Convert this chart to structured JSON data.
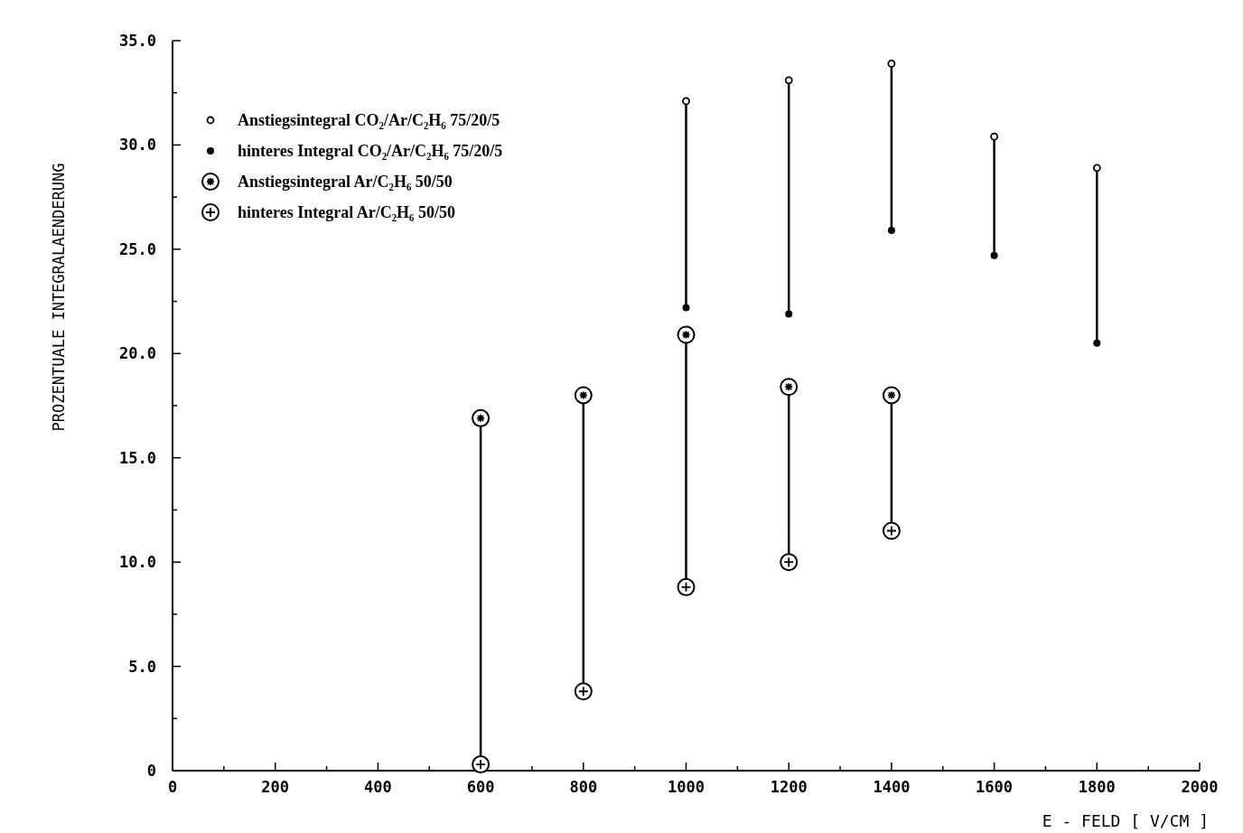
{
  "chart_data": {
    "type": "scatter",
    "xlabel": "E - FELD [ V/CM ]",
    "ylabel": "PROZENTUALE INTEGRALAENDERUNG",
    "xlim": [
      0,
      2000
    ],
    "ylim": [
      0,
      35
    ],
    "xticks": [
      0,
      {
        "value": 100,
        "label": null
      },
      200,
      {
        "value": 300,
        "label": null
      },
      400,
      {
        "value": 500,
        "label": null
      },
      600,
      {
        "value": 700,
        "label": null
      },
      800,
      {
        "value": 900,
        "label": null
      },
      1000,
      {
        "value": 1100,
        "label": null
      },
      1200,
      {
        "value": 1300,
        "label": null
      },
      1400,
      {
        "value": 1500,
        "label": null
      },
      1600,
      {
        "value": 1700,
        "label": null
      },
      1800,
      {
        "value": 1900,
        "label": null
      },
      2000
    ],
    "yticks": [
      0,
      {
        "value": 2.5,
        "label": null
      },
      {
        "value": 5,
        "label": "5.0"
      },
      {
        "value": 7.5,
        "label": null
      },
      {
        "value": 10,
        "label": "10.0"
      },
      {
        "value": 12.5,
        "label": null
      },
      {
        "value": 15,
        "label": "15.0"
      },
      {
        "value": 17.5,
        "label": null
      },
      {
        "value": 20,
        "label": "20.0"
      },
      {
        "value": 22.5,
        "label": null
      },
      {
        "value": 25,
        "label": "25.0"
      },
      {
        "value": 27.5,
        "label": null
      },
      {
        "value": 30,
        "label": "30.0"
      },
      {
        "value": 32.5,
        "label": null
      },
      {
        "value": 35,
        "label": "35.0"
      }
    ],
    "legend": "top left",
    "grid": false,
    "series": [
      {
        "name": "Anstiegsintegral CO₂/Ar/C₂H₆ 75/20/5",
        "color": "#000000",
        "marker": "open-circle",
        "x": [
          1000,
          1200,
          1400,
          1600,
          1800
        ],
        "values": [
          32.1,
          33.1,
          33.9,
          30.4,
          28.9
        ]
      },
      {
        "name": "hinteres Integral CO₂/Ar/C₂H₆ 75/20/5",
        "color": "#000000",
        "marker": "circle",
        "x": [
          1000,
          1200,
          1400,
          1600,
          1800
        ],
        "values": [
          22.2,
          21.9,
          25.9,
          24.7,
          20.5
        ]
      },
      {
        "name": "Anstiegsintegral Ar/C₂H₆ 50/50",
        "color": "#000000",
        "marker": "circle-star",
        "x": [
          600,
          800,
          1000,
          1200,
          1400
        ],
        "values": [
          16.9,
          18.0,
          20.9,
          18.4,
          18.0
        ]
      },
      {
        "name": "hinteres Integral Ar/C₂H₆ 50/50",
        "color": "#000000",
        "marker": "circle-plus",
        "x": [
          600,
          800,
          1000,
          1200,
          1400
        ],
        "values": [
          0.3,
          3.8,
          8.8,
          10.0,
          11.5
        ]
      },
      {
        "type": "line",
        "color": "#000000",
        "x": [
          1000,
          1000,
          null,
          1200,
          1200,
          null,
          1400,
          1400,
          null,
          1600,
          1600,
          null,
          1800,
          1800
        ],
        "values": [
          32.1,
          22.2,
          null,
          33.1,
          21.9,
          null,
          33.9,
          25.9,
          null,
          30.4,
          24.7,
          null,
          28.9,
          20.5
        ]
      },
      {
        "type": "line",
        "color": "#000000",
        "x": [
          600,
          600,
          null,
          800,
          800,
          null,
          1000,
          1000,
          null,
          1200,
          1200,
          null,
          1400,
          1400
        ],
        "values": [
          16.9,
          0.3,
          null,
          18.0,
          3.8,
          null,
          20.9,
          8.8,
          null,
          18.4,
          10.0,
          null,
          18.0,
          11.5
        ]
      }
    ]
  }
}
